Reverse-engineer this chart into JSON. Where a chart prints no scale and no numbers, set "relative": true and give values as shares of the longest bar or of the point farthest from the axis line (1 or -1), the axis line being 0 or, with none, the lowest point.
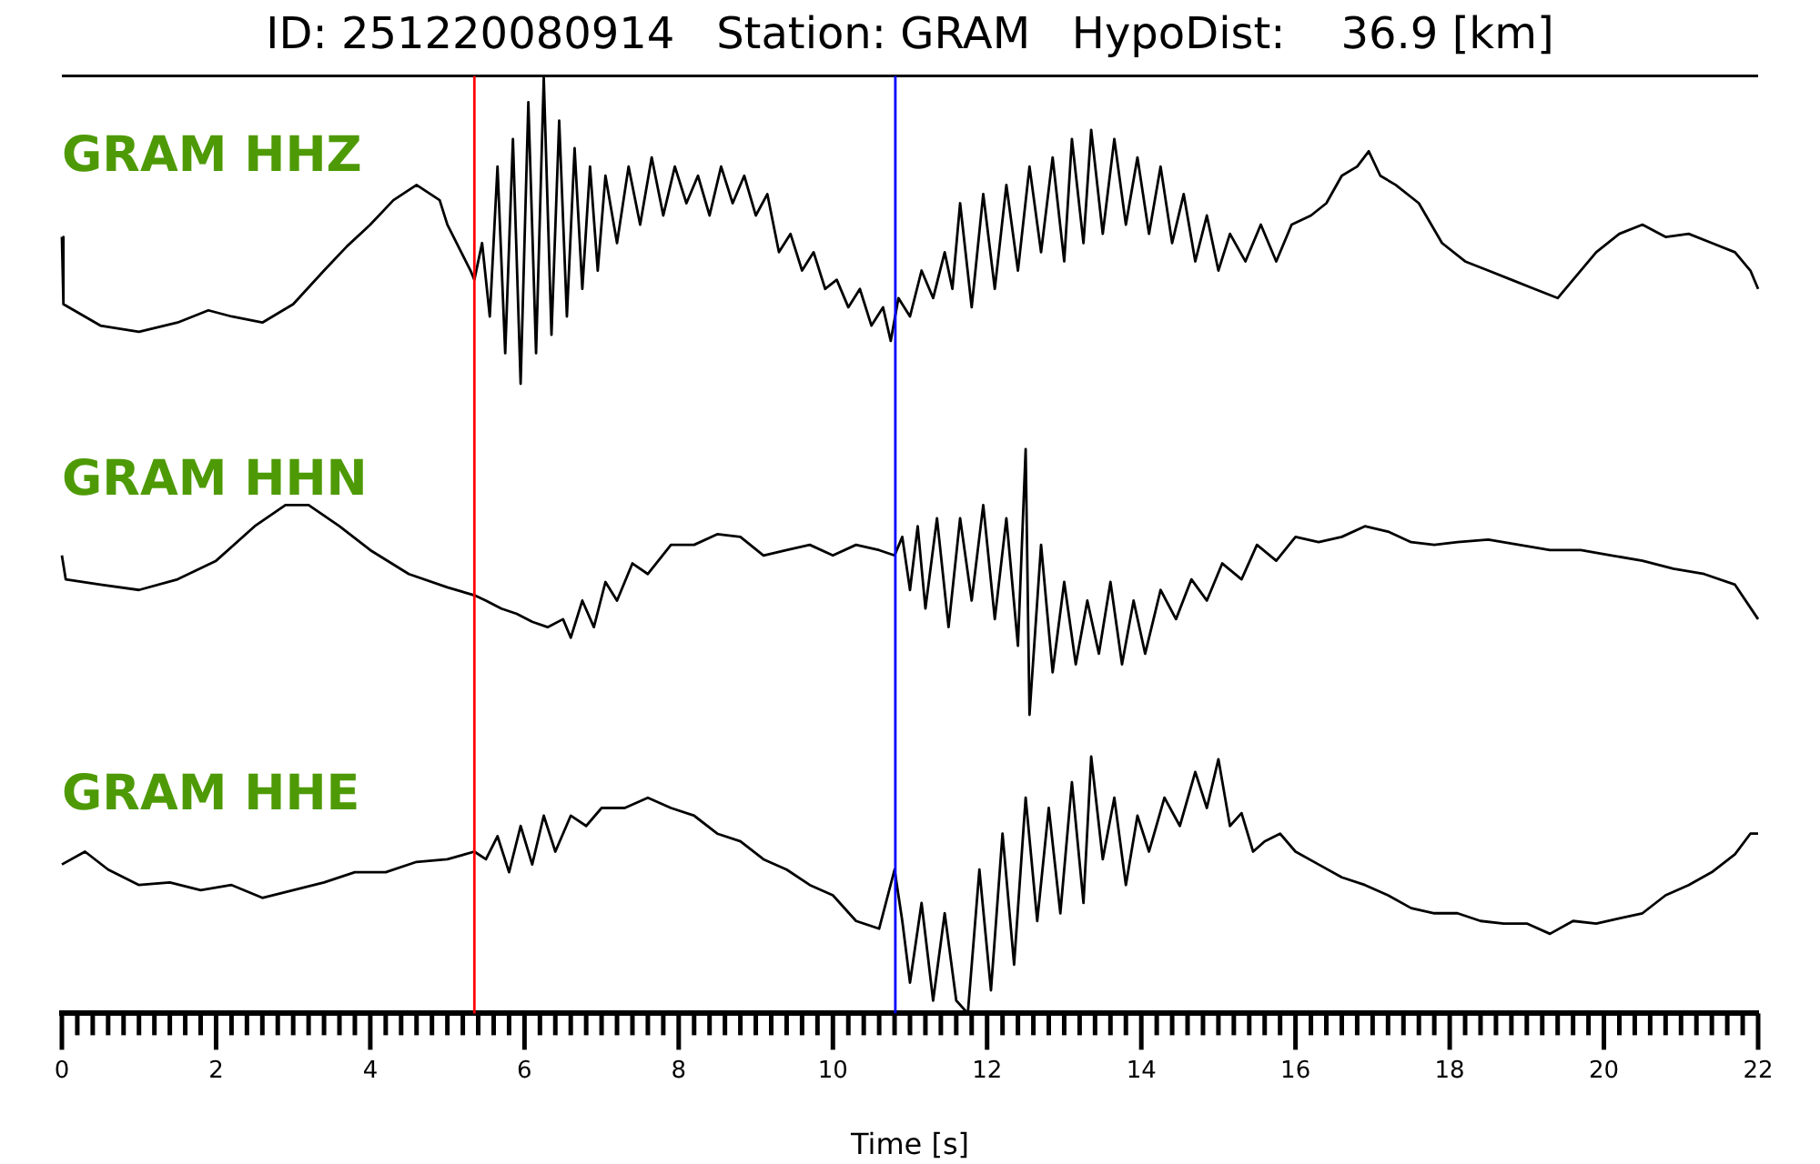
{
  "chart_data": [
    {
      "type": "line",
      "title": "ID: 251220080914   Station: GRAM   HypoDist:    36.9 [km]",
      "relative": true,
      "xlim": [
        0,
        22
      ],
      "tick_labels": false,
      "legend": false,
      "marker": "none",
      "series": [
        {
          "name": "GRAM HHZ",
          "color": "#000000",
          "x": [
            0,
            0.02,
            0.5,
            1.0,
            1.5,
            1.9,
            2.2,
            2.6,
            3.0,
            3.4,
            3.7,
            4.0,
            4.3,
            4.6,
            4.9,
            5.0,
            5.3,
            5.35,
            5.45,
            5.55,
            5.65,
            5.75,
            5.85,
            5.95,
            6.05,
            6.15,
            6.25,
            6.35,
            6.45,
            6.55,
            6.65,
            6.75,
            6.85,
            6.95,
            7.05,
            7.2,
            7.35,
            7.5,
            7.65,
            7.8,
            7.95,
            8.1,
            8.25,
            8.4,
            8.55,
            8.7,
            8.85,
            9.0,
            9.15,
            9.3,
            9.45,
            9.6,
            9.75,
            9.9,
            10.05,
            10.2,
            10.35,
            10.5,
            10.65,
            10.75,
            10.85,
            11.0,
            11.15,
            11.3,
            11.45,
            11.55,
            11.65,
            11.8,
            11.95,
            12.1,
            12.25,
            12.4,
            12.55,
            12.7,
            12.85,
            13.0,
            13.1,
            13.25,
            13.35,
            13.5,
            13.65,
            13.8,
            13.95,
            14.1,
            14.25,
            14.4,
            14.55,
            14.7,
            14.85,
            15.0,
            15.15,
            15.35,
            15.55,
            15.75,
            15.95,
            16.2,
            16.4,
            16.6,
            16.8,
            16.95,
            17.1,
            17.3,
            17.6,
            17.9,
            18.2,
            18.5,
            18.8,
            19.1,
            19.4,
            19.6,
            19.9,
            20.2,
            20.5,
            20.8,
            21.1,
            21.4,
            21.7,
            21.9,
            22.0
          ],
          "values": [
            0.48,
            0.26,
            0.19,
            0.17,
            0.2,
            0.24,
            0.22,
            0.2,
            0.26,
            0.37,
            0.45,
            0.52,
            0.6,
            0.65,
            0.6,
            0.52,
            0.37,
            0.34,
            0.46,
            0.22,
            0.71,
            0.1,
            0.8,
            0,
            0.92,
            0.1,
            1.0,
            0.16,
            0.86,
            0.22,
            0.77,
            0.31,
            0.71,
            0.37,
            0.68,
            0.46,
            0.71,
            0.52,
            0.74,
            0.55,
            0.71,
            0.59,
            0.68,
            0.55,
            0.71,
            0.59,
            0.68,
            0.55,
            0.62,
            0.43,
            0.49,
            0.37,
            0.43,
            0.31,
            0.34,
            0.25,
            0.31,
            0.19,
            0.25,
            0.14,
            0.28,
            0.22,
            0.37,
            0.28,
            0.43,
            0.31,
            0.59,
            0.25,
            0.62,
            0.31,
            0.65,
            0.37,
            0.71,
            0.43,
            0.74,
            0.4,
            0.8,
            0.46,
            0.83,
            0.49,
            0.8,
            0.52,
            0.74,
            0.49,
            0.71,
            0.46,
            0.62,
            0.4,
            0.55,
            0.37,
            0.49,
            0.4,
            0.52,
            0.4,
            0.52,
            0.55,
            0.59,
            0.68,
            0.71,
            0.76,
            0.68,
            0.65,
            0.59,
            0.46,
            0.4,
            0.37,
            0.34,
            0.31,
            0.28,
            0.34,
            0.43,
            0.49,
            0.52,
            0.48,
            0.49,
            0.46,
            0.43,
            0.37,
            0.31
          ]
        }
      ],
      "ref_lines": [
        {
          "axis": "x",
          "value": 5.35,
          "color": "#ff0000"
        },
        {
          "axis": "x",
          "value": 10.81,
          "color": "#0000ff"
        }
      ]
    },
    {
      "type": "line",
      "relative": true,
      "xlim": [
        0,
        22
      ],
      "tick_labels": false,
      "legend": false,
      "marker": "none",
      "series": [
        {
          "name": "GRAM HHN",
          "color": "#000000",
          "x": [
            0,
            0.05,
            0.5,
            1.0,
            1.5,
            2.0,
            2.5,
            2.9,
            3.2,
            3.6,
            4.0,
            4.5,
            5.0,
            5.35,
            5.5,
            5.7,
            5.9,
            6.1,
            6.3,
            6.5,
            6.6,
            6.75,
            6.9,
            7.05,
            7.2,
            7.4,
            7.6,
            7.9,
            8.2,
            8.5,
            8.8,
            9.1,
            9.4,
            9.7,
            10.0,
            10.3,
            10.6,
            10.8,
            10.9,
            11.0,
            11.1,
            11.2,
            11.35,
            11.5,
            11.65,
            11.8,
            11.95,
            12.1,
            12.25,
            12.4,
            12.5,
            12.55,
            12.7,
            12.85,
            13.0,
            13.15,
            13.3,
            13.45,
            13.6,
            13.75,
            13.9,
            14.05,
            14.25,
            14.45,
            14.65,
            14.85,
            15.05,
            15.3,
            15.5,
            15.75,
            16.0,
            16.3,
            16.6,
            16.9,
            17.2,
            17.5,
            17.8,
            18.1,
            18.5,
            18.9,
            19.3,
            19.7,
            20.1,
            20.5,
            20.9,
            21.3,
            21.7,
            22.0
          ],
          "values": [
            0.6,
            0.51,
            0.49,
            0.47,
            0.51,
            0.58,
            0.71,
            0.79,
            0.79,
            0.71,
            0.62,
            0.53,
            0.48,
            0.45,
            0.43,
            0.4,
            0.38,
            0.35,
            0.33,
            0.36,
            0.29,
            0.43,
            0.33,
            0.5,
            0.43,
            0.57,
            0.53,
            0.64,
            0.64,
            0.68,
            0.67,
            0.6,
            0.62,
            0.64,
            0.6,
            0.64,
            0.62,
            0.6,
            0.67,
            0.47,
            0.71,
            0.4,
            0.74,
            0.33,
            0.74,
            0.43,
            0.79,
            0.36,
            0.74,
            0.26,
            1.0,
            0,
            0.64,
            0.16,
            0.5,
            0.19,
            0.43,
            0.23,
            0.5,
            0.19,
            0.43,
            0.23,
            0.47,
            0.36,
            0.51,
            0.43,
            0.57,
            0.51,
            0.64,
            0.58,
            0.67,
            0.65,
            0.67,
            0.71,
            0.69,
            0.65,
            0.64,
            0.65,
            0.66,
            0.64,
            0.62,
            0.62,
            0.6,
            0.58,
            0.55,
            0.53,
            0.49,
            0.36
          ]
        }
      ],
      "ref_lines": [
        {
          "axis": "x",
          "value": 5.35,
          "color": "#ff0000"
        },
        {
          "axis": "x",
          "value": 10.81,
          "color": "#0000ff"
        }
      ]
    },
    {
      "type": "line",
      "relative": true,
      "xlabel": "Time [s]",
      "xlim": [
        0,
        22
      ],
      "tick_labels": "x",
      "legend": false,
      "marker": "none",
      "xticks": [
        0,
        {
          "value": 0.2,
          "label": null
        },
        {
          "value": 0.4,
          "label": null
        },
        {
          "value": 0.6,
          "label": null
        },
        {
          "value": 0.8,
          "label": null
        },
        {
          "value": 1,
          "label": null
        },
        {
          "value": 1.2,
          "label": null
        },
        {
          "value": 1.4,
          "label": null
        },
        {
          "value": 1.6,
          "label": null
        },
        {
          "value": 1.8,
          "label": null
        },
        2,
        {
          "value": 2.2,
          "label": null
        },
        {
          "value": 2.4,
          "label": null
        },
        {
          "value": 2.6,
          "label": null
        },
        {
          "value": 2.8,
          "label": null
        },
        {
          "value": 3,
          "label": null
        },
        {
          "value": 3.2,
          "label": null
        },
        {
          "value": 3.4,
          "label": null
        },
        {
          "value": 3.6,
          "label": null
        },
        {
          "value": 3.8,
          "label": null
        },
        4,
        {
          "value": 4.2,
          "label": null
        },
        {
          "value": 4.4,
          "label": null
        },
        {
          "value": 4.6,
          "label": null
        },
        {
          "value": 4.8,
          "label": null
        },
        {
          "value": 5,
          "label": null
        },
        {
          "value": 5.2,
          "label": null
        },
        {
          "value": 5.4,
          "label": null
        },
        {
          "value": 5.6,
          "label": null
        },
        {
          "value": 5.8,
          "label": null
        },
        6,
        {
          "value": 6.2,
          "label": null
        },
        {
          "value": 6.4,
          "label": null
        },
        {
          "value": 6.6,
          "label": null
        },
        {
          "value": 6.8,
          "label": null
        },
        {
          "value": 7,
          "label": null
        },
        {
          "value": 7.2,
          "label": null
        },
        {
          "value": 7.4,
          "label": null
        },
        {
          "value": 7.6,
          "label": null
        },
        {
          "value": 7.8,
          "label": null
        },
        8,
        {
          "value": 8.2,
          "label": null
        },
        {
          "value": 8.4,
          "label": null
        },
        {
          "value": 8.6,
          "label": null
        },
        {
          "value": 8.8,
          "label": null
        },
        {
          "value": 9,
          "label": null
        },
        {
          "value": 9.2,
          "label": null
        },
        {
          "value": 9.4,
          "label": null
        },
        {
          "value": 9.6,
          "label": null
        },
        {
          "value": 9.8,
          "label": null
        },
        10,
        {
          "value": 10.2,
          "label": null
        },
        {
          "value": 10.4,
          "label": null
        },
        {
          "value": 10.6,
          "label": null
        },
        {
          "value": 10.8,
          "label": null
        },
        {
          "value": 11,
          "label": null
        },
        {
          "value": 11.2,
          "label": null
        },
        {
          "value": 11.4,
          "label": null
        },
        {
          "value": 11.6,
          "label": null
        },
        {
          "value": 11.8,
          "label": null
        },
        12,
        {
          "value": 12.2,
          "label": null
        },
        {
          "value": 12.4,
          "label": null
        },
        {
          "value": 12.6,
          "label": null
        },
        {
          "value": 12.8,
          "label": null
        },
        {
          "value": 13,
          "label": null
        },
        {
          "value": 13.2,
          "label": null
        },
        {
          "value": 13.4,
          "label": null
        },
        {
          "value": 13.6,
          "label": null
        },
        {
          "value": 13.8,
          "label": null
        },
        14,
        {
          "value": 14.2,
          "label": null
        },
        {
          "value": 14.4,
          "label": null
        },
        {
          "value": 14.6,
          "label": null
        },
        {
          "value": 14.8,
          "label": null
        },
        {
          "value": 15,
          "label": null
        },
        {
          "value": 15.2,
          "label": null
        },
        {
          "value": 15.4,
          "label": null
        },
        {
          "value": 15.6,
          "label": null
        },
        {
          "value": 15.8,
          "label": null
        },
        16,
        {
          "value": 16.2,
          "label": null
        },
        {
          "value": 16.4,
          "label": null
        },
        {
          "value": 16.6,
          "label": null
        },
        {
          "value": 16.8,
          "label": null
        },
        {
          "value": 17,
          "label": null
        },
        {
          "value": 17.2,
          "label": null
        },
        {
          "value": 17.4,
          "label": null
        },
        {
          "value": 17.6,
          "label": null
        },
        {
          "value": 17.8,
          "label": null
        },
        18,
        {
          "value": 18.2,
          "label": null
        },
        {
          "value": 18.4,
          "label": null
        },
        {
          "value": 18.6,
          "label": null
        },
        {
          "value": 18.8,
          "label": null
        },
        {
          "value": 19,
          "label": null
        },
        {
          "value": 19.2,
          "label": null
        },
        {
          "value": 19.4,
          "label": null
        },
        {
          "value": 19.6,
          "label": null
        },
        {
          "value": 19.8,
          "label": null
        },
        20,
        {
          "value": 20.2,
          "label": null
        },
        {
          "value": 20.4,
          "label": null
        },
        {
          "value": 20.6,
          "label": null
        },
        {
          "value": 20.8,
          "label": null
        },
        {
          "value": 21,
          "label": null
        },
        {
          "value": 21.2,
          "label": null
        },
        {
          "value": 21.4,
          "label": null
        },
        {
          "value": 21.6,
          "label": null
        },
        {
          "value": 21.8,
          "label": null
        },
        22
      ],
      "series": [
        {
          "name": "GRAM HHE",
          "color": "#000000",
          "x": [
            0,
            0.3,
            0.6,
            1.0,
            1.4,
            1.8,
            2.2,
            2.6,
            3.0,
            3.4,
            3.8,
            4.2,
            4.6,
            5.0,
            5.35,
            5.5,
            5.65,
            5.8,
            5.95,
            6.1,
            6.25,
            6.4,
            6.6,
            6.8,
            7.0,
            7.3,
            7.6,
            7.9,
            8.2,
            8.5,
            8.8,
            9.1,
            9.4,
            9.7,
            10.0,
            10.3,
            10.6,
            10.8,
            10.9,
            11.0,
            11.15,
            11.3,
            11.45,
            11.6,
            11.75,
            11.9,
            12.05,
            12.2,
            12.35,
            12.5,
            12.65,
            12.8,
            12.95,
            13.1,
            13.25,
            13.35,
            13.5,
            13.65,
            13.8,
            13.95,
            14.1,
            14.3,
            14.5,
            14.7,
            14.85,
            15.0,
            15.15,
            15.3,
            15.45,
            15.6,
            15.8,
            16.0,
            16.3,
            16.6,
            16.9,
            17.2,
            17.5,
            17.8,
            18.1,
            18.4,
            18.7,
            19.0,
            19.3,
            19.6,
            19.9,
            20.2,
            20.5,
            20.8,
            21.1,
            21.4,
            21.7,
            21.9,
            22.0
          ],
          "values": [
            0.58,
            0.63,
            0.56,
            0.5,
            0.51,
            0.48,
            0.5,
            0.45,
            0.48,
            0.51,
            0.55,
            0.55,
            0.59,
            0.6,
            0.63,
            0.6,
            0.69,
            0.55,
            0.73,
            0.58,
            0.77,
            0.63,
            0.77,
            0.73,
            0.8,
            0.8,
            0.84,
            0.8,
            0.77,
            0.7,
            0.67,
            0.6,
            0.56,
            0.5,
            0.46,
            0.36,
            0.33,
            0.56,
            0.36,
            0.12,
            0.43,
            0.05,
            0.39,
            0.05,
            0,
            0.56,
            0.09,
            0.7,
            0.19,
            0.84,
            0.36,
            0.8,
            0.39,
            0.9,
            0.43,
            1.0,
            0.6,
            0.84,
            0.5,
            0.77,
            0.63,
            0.84,
            0.73,
            0.94,
            0.8,
            0.99,
            0.73,
            0.78,
            0.63,
            0.67,
            0.7,
            0.63,
            0.58,
            0.53,
            0.5,
            0.46,
            0.41,
            0.39,
            0.39,
            0.36,
            0.35,
            0.35,
            0.31,
            0.36,
            0.35,
            0.37,
            0.39,
            0.46,
            0.5,
            0.55,
            0.62,
            0.7,
            0.7
          ]
        }
      ],
      "ref_lines": [
        {
          "axis": "x",
          "value": 5.35,
          "color": "#ff0000"
        },
        {
          "axis": "x",
          "value": 10.81,
          "color": "#0000ff"
        }
      ]
    }
  ]
}
